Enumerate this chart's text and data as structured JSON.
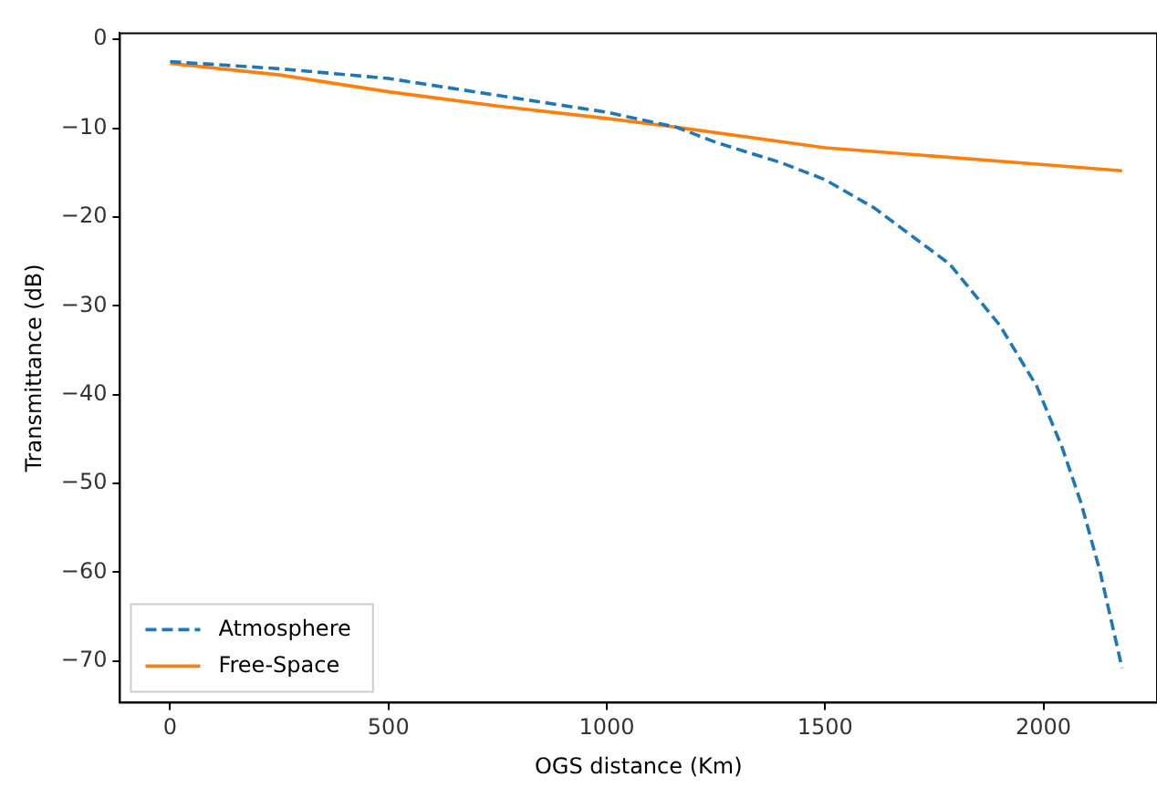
{
  "chart_data": {
    "type": "line",
    "xlabel": "OGS distance (Km)",
    "ylabel": "Transmittance (dB)",
    "xlim": [
      -115,
      2260
    ],
    "ylim": [
      -74.7,
      0.7
    ],
    "xticks": [
      0,
      500,
      1000,
      1500,
      2000
    ],
    "yticks": [
      0,
      -10,
      -20,
      -30,
      -40,
      -50,
      -60,
      -70
    ],
    "grid": false,
    "legend": "bottom left",
    "marker": "none",
    "series": [
      {
        "name": "Atmosphere",
        "color": "#1f77b4",
        "line_style": "dashed",
        "x": [
          0,
          250,
          500,
          750,
          1000,
          1160,
          1250,
          1400,
          1500,
          1613,
          1785,
          1900,
          1985,
          2043,
          2086,
          2129,
          2180
        ],
        "values": [
          -2.5,
          -3.3,
          -4.4,
          -6.3,
          -8.2,
          -9.9,
          -11.6,
          -13.9,
          -15.8,
          -19.0,
          -25.3,
          -32.2,
          -39.1,
          -46.0,
          -52.2,
          -59.8,
          -70.8
        ]
      },
      {
        "name": "Free-Space",
        "color": "#ff7f0e",
        "line_style": "solid",
        "x": [
          0,
          250,
          500,
          750,
          1000,
          1160,
          1500,
          2000,
          2180
        ],
        "values": [
          -2.7,
          -4.0,
          -5.9,
          -7.5,
          -8.9,
          -9.9,
          -12.2,
          -14.1,
          -14.8
        ]
      }
    ]
  }
}
